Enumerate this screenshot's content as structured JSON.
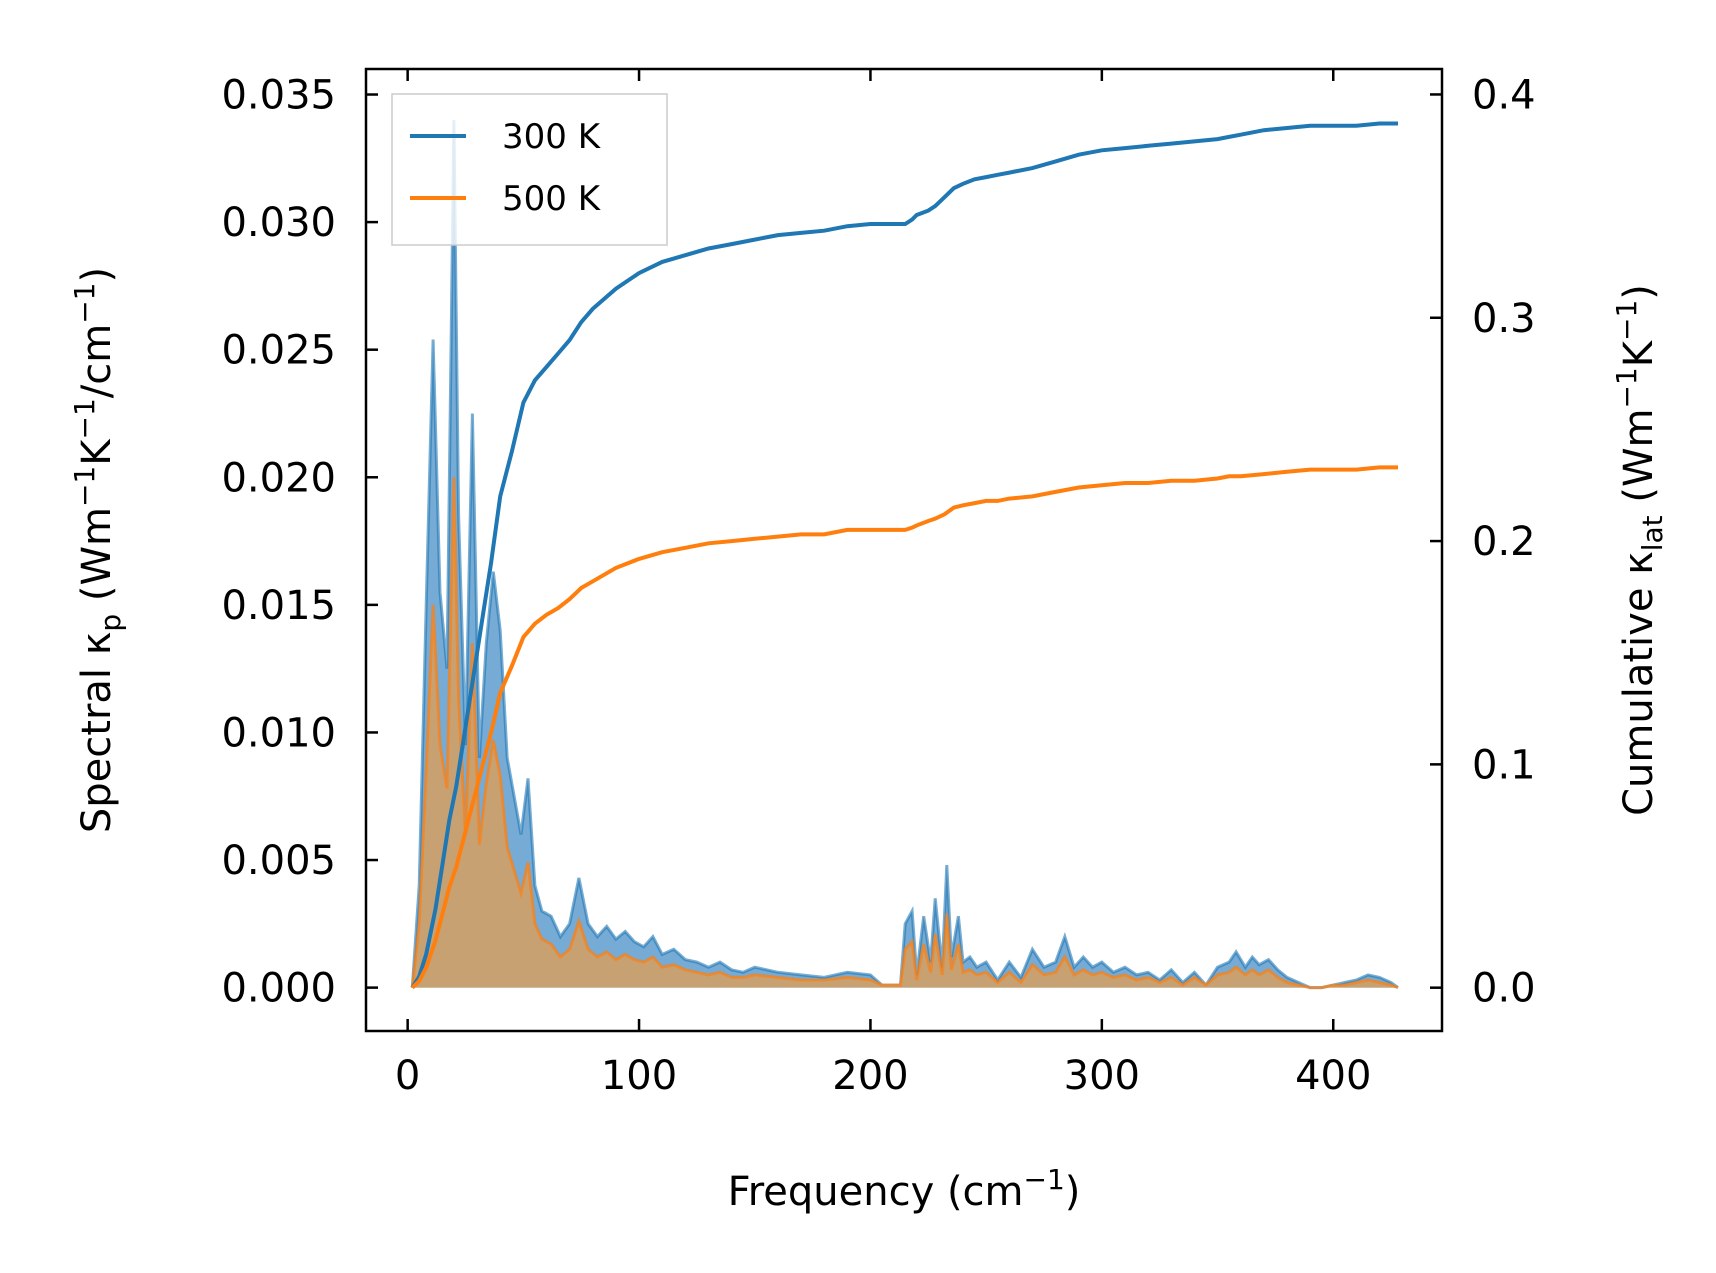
{
  "chart_data": {
    "type": "line",
    "xlabel": {
      "main": "Frequency (cm",
      "sup": "−1",
      "tail": ")"
    },
    "ylabel_left": {
      "main": "Spectral κ",
      "sub": "p",
      "mid": " (Wm",
      "sup1": "−1",
      "k": "K",
      "sup2": "−1",
      "per": "/cm",
      "sup3": "−1",
      "tail": ")"
    },
    "ylabel_right": {
      "main": "Cumulative κ",
      "sub": "lat",
      "mid": " (Wm",
      "sup1": "−1",
      "k": "K",
      "sup2": "−1",
      "tail": ")"
    },
    "xlim": [
      -18,
      447
    ],
    "ylim_left": [
      -0.0017,
      0.036
    ],
    "ylim_right": [
      -0.0194,
      0.4114
    ],
    "x_ticks": [
      0,
      100,
      200,
      300,
      400
    ],
    "x_tick_labels": [
      "0",
      "100",
      "200",
      "300",
      "400"
    ],
    "y_left_ticks": [
      0.0,
      0.005,
      0.01,
      0.015,
      0.02,
      0.025,
      0.03,
      0.035
    ],
    "y_left_tick_labels": [
      "0.000",
      "0.005",
      "0.010",
      "0.015",
      "0.020",
      "0.025",
      "0.030",
      "0.035"
    ],
    "y_right_ticks": [
      0.0,
      0.1,
      0.2,
      0.3,
      0.4
    ],
    "y_right_tick_labels": [
      "0.0",
      "0.1",
      "0.2",
      "0.3",
      "0.4"
    ],
    "legend": {
      "position": "top-left",
      "entries": [
        "300 K",
        "500 K"
      ]
    },
    "colors": {
      "300K": "#1f77b4",
      "500K": "#ff7f0e",
      "300K_fill": "#5d9ccc",
      "500K_fill": "#d2a068"
    },
    "spectral_300K": {
      "x": [
        2,
        5,
        8,
        11,
        14,
        17,
        20,
        22,
        25,
        28,
        31,
        34,
        37,
        40,
        43,
        46,
        49,
        52,
        55,
        58,
        62,
        66,
        70,
        74,
        78,
        82,
        86,
        90,
        94,
        98,
        102,
        106,
        110,
        115,
        120,
        125,
        130,
        135,
        140,
        145,
        150,
        160,
        170,
        180,
        190,
        200,
        205,
        210,
        213,
        215,
        218,
        220,
        223,
        226,
        228,
        231,
        233,
        235,
        238,
        240,
        243,
        246,
        250,
        255,
        260,
        265,
        270,
        275,
        280,
        284,
        288,
        292,
        296,
        300,
        305,
        310,
        315,
        320,
        325,
        330,
        335,
        340,
        345,
        350,
        355,
        358,
        362,
        365,
        368,
        372,
        376,
        380,
        385,
        390,
        395,
        400,
        405,
        410,
        415,
        420,
        425,
        428
      ],
      "y": [
        0.0,
        0.004,
        0.015,
        0.0254,
        0.0155,
        0.0125,
        0.034,
        0.0185,
        0.0095,
        0.0225,
        0.009,
        0.0135,
        0.0163,
        0.014,
        0.009,
        0.0075,
        0.006,
        0.0082,
        0.004,
        0.003,
        0.0028,
        0.002,
        0.0025,
        0.0043,
        0.0025,
        0.002,
        0.0024,
        0.0019,
        0.0022,
        0.0018,
        0.0016,
        0.002,
        0.0013,
        0.0015,
        0.0011,
        0.001,
        0.0008,
        0.001,
        0.0007,
        0.0006,
        0.0008,
        0.0006,
        0.0005,
        0.0004,
        0.0006,
        0.0005,
        0.0001,
        0.0001,
        0.0001,
        0.0025,
        0.003,
        0.0005,
        0.0028,
        0.001,
        0.0035,
        0.0008,
        0.0048,
        0.0012,
        0.0028,
        0.001,
        0.0012,
        0.0008,
        0.001,
        0.0003,
        0.001,
        0.0004,
        0.0015,
        0.0008,
        0.001,
        0.002,
        0.0008,
        0.0012,
        0.0008,
        0.001,
        0.0006,
        0.0008,
        0.0005,
        0.0006,
        0.0003,
        0.0007,
        0.0002,
        0.0006,
        0.0001,
        0.0008,
        0.001,
        0.0014,
        0.0008,
        0.0012,
        0.0009,
        0.0011,
        0.0007,
        0.0004,
        0.0002,
        0.0,
        0.0,
        0.0001,
        0.0002,
        0.0003,
        0.0005,
        0.0004,
        0.0002,
        0.0
      ]
    },
    "spectral_500K": {
      "x": [
        2,
        5,
        8,
        11,
        14,
        17,
        20,
        22,
        25,
        28,
        31,
        34,
        37,
        40,
        43,
        46,
        49,
        52,
        55,
        58,
        62,
        66,
        70,
        74,
        78,
        82,
        86,
        90,
        94,
        98,
        102,
        106,
        110,
        115,
        120,
        125,
        130,
        135,
        140,
        145,
        150,
        160,
        170,
        180,
        190,
        200,
        205,
        210,
        213,
        215,
        218,
        220,
        223,
        226,
        228,
        231,
        233,
        235,
        238,
        240,
        243,
        246,
        250,
        255,
        260,
        265,
        270,
        275,
        280,
        284,
        288,
        292,
        296,
        300,
        305,
        310,
        315,
        320,
        325,
        330,
        335,
        340,
        345,
        350,
        355,
        358,
        362,
        365,
        368,
        372,
        376,
        380,
        385,
        390,
        395,
        400,
        405,
        410,
        415,
        420,
        425,
        428
      ],
      "y": [
        0.0,
        0.0025,
        0.0085,
        0.015,
        0.0095,
        0.0078,
        0.02,
        0.0112,
        0.006,
        0.0135,
        0.0056,
        0.008,
        0.0097,
        0.0083,
        0.0055,
        0.0046,
        0.0037,
        0.0049,
        0.0025,
        0.0019,
        0.0017,
        0.0012,
        0.0015,
        0.0026,
        0.0015,
        0.0012,
        0.0014,
        0.0011,
        0.0013,
        0.0011,
        0.001,
        0.0012,
        0.0008,
        0.0009,
        0.0007,
        0.0006,
        0.0005,
        0.0006,
        0.0004,
        0.0004,
        0.0005,
        0.0004,
        0.0003,
        0.0003,
        0.0004,
        0.0003,
        0.0001,
        0.0001,
        0.0001,
        0.0015,
        0.0018,
        0.0003,
        0.0017,
        0.0006,
        0.0021,
        0.0005,
        0.0029,
        0.0007,
        0.0017,
        0.0006,
        0.0007,
        0.0005,
        0.0006,
        0.0002,
        0.0006,
        0.0002,
        0.0009,
        0.0005,
        0.0006,
        0.0012,
        0.0005,
        0.0007,
        0.0005,
        0.0006,
        0.0004,
        0.0005,
        0.0003,
        0.0004,
        0.0002,
        0.0004,
        0.0001,
        0.0004,
        0.0001,
        0.0005,
        0.0006,
        0.0008,
        0.0005,
        0.0007,
        0.0005,
        0.0007,
        0.0004,
        0.0002,
        0.0001,
        0.0,
        0.0,
        0.0001,
        0.0001,
        0.0002,
        0.0003,
        0.0002,
        0.0001,
        0.0
      ]
    },
    "cumulative_300K": {
      "x": [
        2,
        5,
        8,
        10,
        12,
        15,
        18,
        21,
        24,
        27,
        30,
        33,
        36,
        40,
        45,
        50,
        55,
        60,
        65,
        70,
        75,
        80,
        90,
        100,
        110,
        120,
        130,
        140,
        150,
        160,
        170,
        180,
        190,
        200,
        205,
        210,
        213,
        215,
        218,
        220,
        225,
        228,
        232,
        236,
        240,
        245,
        250,
        255,
        260,
        270,
        280,
        290,
        300,
        310,
        320,
        330,
        340,
        350,
        355,
        360,
        370,
        380,
        390,
        400,
        410,
        420,
        428
      ],
      "y": [
        0.0,
        0.005,
        0.015,
        0.025,
        0.035,
        0.055,
        0.075,
        0.09,
        0.11,
        0.13,
        0.15,
        0.17,
        0.19,
        0.22,
        0.24,
        0.262,
        0.272,
        0.278,
        0.284,
        0.29,
        0.298,
        0.304,
        0.313,
        0.32,
        0.325,
        0.328,
        0.331,
        0.333,
        0.335,
        0.337,
        0.338,
        0.339,
        0.341,
        0.342,
        0.342,
        0.342,
        0.342,
        0.342,
        0.344,
        0.346,
        0.348,
        0.35,
        0.354,
        0.358,
        0.36,
        0.362,
        0.363,
        0.364,
        0.365,
        0.367,
        0.37,
        0.373,
        0.375,
        0.376,
        0.377,
        0.378,
        0.379,
        0.38,
        0.381,
        0.382,
        0.384,
        0.385,
        0.386,
        0.386,
        0.386,
        0.387,
        0.387
      ]
    },
    "cumulative_500K": {
      "x": [
        2,
        5,
        8,
        10,
        12,
        15,
        18,
        21,
        24,
        27,
        30,
        33,
        36,
        40,
        45,
        50,
        55,
        60,
        65,
        70,
        75,
        80,
        90,
        100,
        110,
        120,
        130,
        140,
        150,
        160,
        170,
        180,
        190,
        200,
        205,
        210,
        213,
        215,
        218,
        220,
        225,
        228,
        232,
        236,
        240,
        245,
        250,
        255,
        260,
        270,
        280,
        290,
        300,
        310,
        320,
        330,
        340,
        350,
        355,
        360,
        370,
        380,
        390,
        400,
        410,
        420,
        428
      ],
      "y": [
        0.0,
        0.003,
        0.009,
        0.015,
        0.021,
        0.033,
        0.045,
        0.054,
        0.066,
        0.078,
        0.09,
        0.102,
        0.114,
        0.132,
        0.144,
        0.157,
        0.163,
        0.167,
        0.17,
        0.174,
        0.179,
        0.182,
        0.188,
        0.192,
        0.195,
        0.197,
        0.199,
        0.2,
        0.201,
        0.202,
        0.203,
        0.203,
        0.205,
        0.205,
        0.205,
        0.205,
        0.205,
        0.205,
        0.206,
        0.207,
        0.209,
        0.21,
        0.212,
        0.215,
        0.216,
        0.217,
        0.218,
        0.218,
        0.219,
        0.22,
        0.222,
        0.224,
        0.225,
        0.226,
        0.226,
        0.227,
        0.227,
        0.228,
        0.229,
        0.229,
        0.23,
        0.231,
        0.232,
        0.232,
        0.232,
        0.233,
        0.233
      ]
    }
  }
}
